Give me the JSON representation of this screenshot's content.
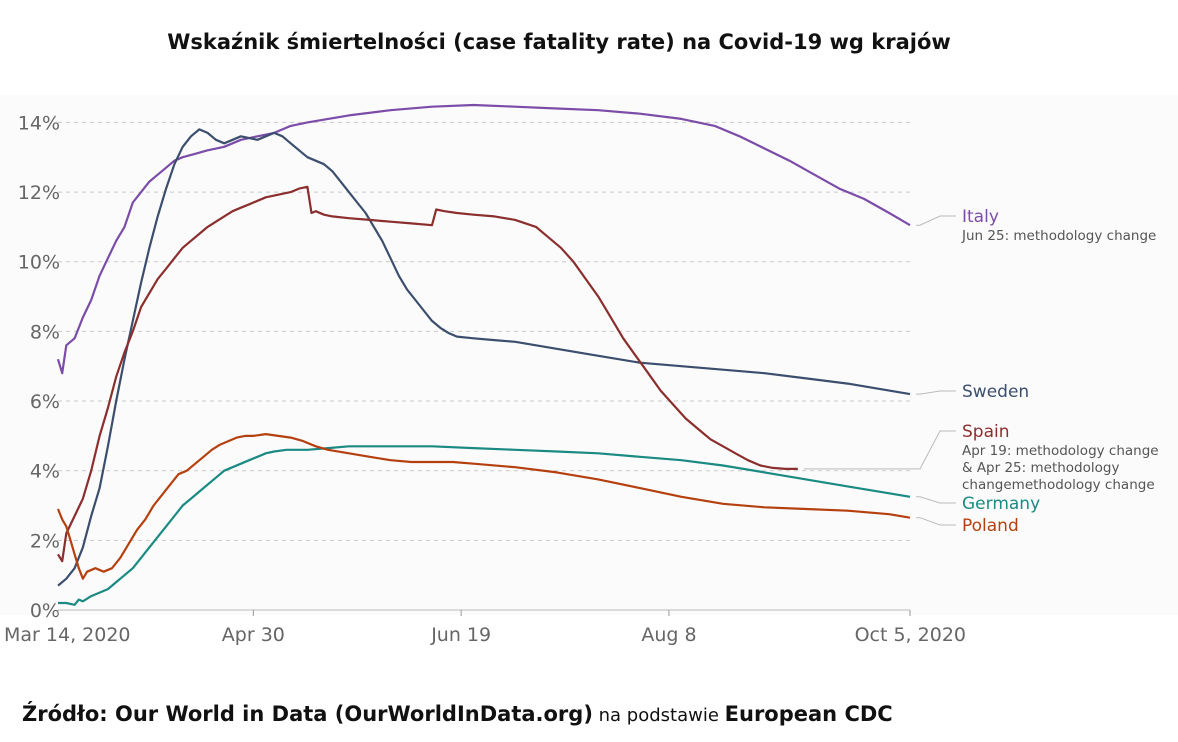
{
  "title": "Wskaźnik śmiertelności (case fatality rate) na Covid-19 wg krajów",
  "source": {
    "prefix": "Źródło: Our World in Data (OurWorldInData.org)",
    "middle": " na podstawie ",
    "suffix": "European CDC"
  },
  "chart_data": {
    "type": "line",
    "title": "Wskaźnik śmiertelności (case fatality rate) na Covid-19 wg krajów",
    "xlabel": "",
    "ylabel": "",
    "x_range_days": [
      0,
      205
    ],
    "x_ticks": [
      {
        "day": 0,
        "label": "Mar 14, 2020"
      },
      {
        "day": 47,
        "label": "Apr 30"
      },
      {
        "day": 97,
        "label": "Jun 19"
      },
      {
        "day": 147,
        "label": "Aug 8"
      },
      {
        "day": 205,
        "label": "Oct 5, 2020"
      }
    ],
    "ylim": [
      0,
      14.5
    ],
    "y_ticks": [
      0,
      2,
      4,
      6,
      8,
      10,
      12,
      14
    ],
    "y_tick_format": "%",
    "grid": "horizontal-dashed",
    "series": [
      {
        "name": "Italy",
        "color": "#7b4ca8",
        "note": "Jun 25: methodology change",
        "points": [
          [
            0,
            7.2
          ],
          [
            1,
            6.8
          ],
          [
            2,
            7.6
          ],
          [
            4,
            7.8
          ],
          [
            6,
            8.4
          ],
          [
            8,
            8.9
          ],
          [
            10,
            9.6
          ],
          [
            12,
            10.1
          ],
          [
            14,
            10.6
          ],
          [
            16,
            11.0
          ],
          [
            18,
            11.7
          ],
          [
            20,
            12.0
          ],
          [
            22,
            12.3
          ],
          [
            24,
            12.5
          ],
          [
            26,
            12.7
          ],
          [
            28,
            12.9
          ],
          [
            30,
            13.0
          ],
          [
            33,
            13.1
          ],
          [
            36,
            13.2
          ],
          [
            40,
            13.3
          ],
          [
            44,
            13.5
          ],
          [
            48,
            13.6
          ],
          [
            52,
            13.7
          ],
          [
            56,
            13.9
          ],
          [
            60,
            14.0
          ],
          [
            65,
            14.1
          ],
          [
            70,
            14.2
          ],
          [
            80,
            14.35
          ],
          [
            90,
            14.45
          ],
          [
            100,
            14.5
          ],
          [
            110,
            14.45
          ],
          [
            120,
            14.4
          ],
          [
            130,
            14.35
          ],
          [
            140,
            14.25
          ],
          [
            150,
            14.1
          ],
          [
            158,
            13.9
          ],
          [
            164,
            13.6
          ],
          [
            170,
            13.25
          ],
          [
            176,
            12.9
          ],
          [
            182,
            12.5
          ],
          [
            188,
            12.1
          ],
          [
            194,
            11.8
          ],
          [
            200,
            11.4
          ],
          [
            205,
            11.05
          ]
        ]
      },
      {
        "name": "Sweden",
        "color": "#3c4e6e",
        "note": "",
        "points": [
          [
            0,
            0.7
          ],
          [
            2,
            0.9
          ],
          [
            4,
            1.2
          ],
          [
            6,
            1.8
          ],
          [
            8,
            2.7
          ],
          [
            10,
            3.5
          ],
          [
            12,
            4.7
          ],
          [
            14,
            6.0
          ],
          [
            16,
            7.2
          ],
          [
            18,
            8.3
          ],
          [
            20,
            9.4
          ],
          [
            22,
            10.4
          ],
          [
            24,
            11.3
          ],
          [
            26,
            12.1
          ],
          [
            28,
            12.8
          ],
          [
            30,
            13.3
          ],
          [
            32,
            13.6
          ],
          [
            34,
            13.8
          ],
          [
            36,
            13.7
          ],
          [
            38,
            13.5
          ],
          [
            40,
            13.4
          ],
          [
            42,
            13.5
          ],
          [
            44,
            13.6
          ],
          [
            46,
            13.55
          ],
          [
            48,
            13.5
          ],
          [
            50,
            13.6
          ],
          [
            52,
            13.7
          ],
          [
            54,
            13.6
          ],
          [
            56,
            13.4
          ],
          [
            58,
            13.2
          ],
          [
            60,
            13.0
          ],
          [
            62,
            12.9
          ],
          [
            64,
            12.8
          ],
          [
            66,
            12.6
          ],
          [
            68,
            12.3
          ],
          [
            70,
            12.0
          ],
          [
            72,
            11.7
          ],
          [
            74,
            11.4
          ],
          [
            76,
            11.0
          ],
          [
            78,
            10.6
          ],
          [
            80,
            10.1
          ],
          [
            82,
            9.6
          ],
          [
            84,
            9.2
          ],
          [
            86,
            8.9
          ],
          [
            88,
            8.6
          ],
          [
            90,
            8.3
          ],
          [
            92,
            8.1
          ],
          [
            94,
            7.95
          ],
          [
            96,
            7.85
          ],
          [
            100,
            7.8
          ],
          [
            105,
            7.75
          ],
          [
            110,
            7.7
          ],
          [
            115,
            7.6
          ],
          [
            120,
            7.5
          ],
          [
            130,
            7.3
          ],
          [
            140,
            7.1
          ],
          [
            150,
            7.0
          ],
          [
            160,
            6.9
          ],
          [
            170,
            6.8
          ],
          [
            180,
            6.65
          ],
          [
            190,
            6.5
          ],
          [
            200,
            6.3
          ],
          [
            205,
            6.2
          ]
        ]
      },
      {
        "name": "Spain",
        "color": "#8b2e2e",
        "note": "Apr 19: methodology change & Apr 25: methodology changemethodology change",
        "note_lines": [
          "Apr 19: methodology change",
          "& Apr 25: methodology",
          "changemethodology change"
        ],
        "points": [
          [
            0,
            1.6
          ],
          [
            1,
            1.4
          ],
          [
            2,
            2.2
          ],
          [
            4,
            2.7
          ],
          [
            6,
            3.2
          ],
          [
            8,
            4.0
          ],
          [
            10,
            5.0
          ],
          [
            12,
            5.8
          ],
          [
            14,
            6.7
          ],
          [
            16,
            7.4
          ],
          [
            18,
            8.0
          ],
          [
            20,
            8.7
          ],
          [
            22,
            9.1
          ],
          [
            24,
            9.5
          ],
          [
            26,
            9.8
          ],
          [
            28,
            10.1
          ],
          [
            30,
            10.4
          ],
          [
            32,
            10.6
          ],
          [
            34,
            10.8
          ],
          [
            36,
            11.0
          ],
          [
            38,
            11.15
          ],
          [
            40,
            11.3
          ],
          [
            42,
            11.45
          ],
          [
            44,
            11.55
          ],
          [
            46,
            11.65
          ],
          [
            48,
            11.75
          ],
          [
            50,
            11.85
          ],
          [
            52,
            11.9
          ],
          [
            54,
            11.95
          ],
          [
            56,
            12.0
          ],
          [
            58,
            12.1
          ],
          [
            60,
            12.15
          ],
          [
            61,
            11.4
          ],
          [
            62,
            11.45
          ],
          [
            64,
            11.35
          ],
          [
            66,
            11.3
          ],
          [
            70,
            11.25
          ],
          [
            75,
            11.2
          ],
          [
            80,
            11.15
          ],
          [
            85,
            11.1
          ],
          [
            90,
            11.05
          ],
          [
            91,
            11.5
          ],
          [
            93,
            11.45
          ],
          [
            96,
            11.4
          ],
          [
            100,
            11.35
          ],
          [
            105,
            11.3
          ],
          [
            110,
            11.2
          ],
          [
            115,
            11.0
          ],
          [
            118,
            10.7
          ],
          [
            121,
            10.4
          ],
          [
            124,
            10.0
          ],
          [
            127,
            9.5
          ],
          [
            130,
            9.0
          ],
          [
            133,
            8.4
          ],
          [
            136,
            7.8
          ],
          [
            139,
            7.3
          ],
          [
            142,
            6.8
          ],
          [
            145,
            6.3
          ],
          [
            148,
            5.9
          ],
          [
            151,
            5.5
          ],
          [
            154,
            5.2
          ],
          [
            157,
            4.9
          ],
          [
            160,
            4.7
          ],
          [
            163,
            4.5
          ],
          [
            166,
            4.3
          ],
          [
            169,
            4.15
          ],
          [
            172,
            4.08
          ],
          [
            175,
            4.05
          ],
          [
            178,
            4.05
          ]
        ]
      },
      {
        "name": "Germany",
        "color": "#1a8a82",
        "note": "",
        "points": [
          [
            0,
            0.2
          ],
          [
            2,
            0.2
          ],
          [
            4,
            0.15
          ],
          [
            5,
            0.3
          ],
          [
            6,
            0.25
          ],
          [
            8,
            0.4
          ],
          [
            10,
            0.5
          ],
          [
            12,
            0.6
          ],
          [
            14,
            0.8
          ],
          [
            16,
            1.0
          ],
          [
            18,
            1.2
          ],
          [
            20,
            1.5
          ],
          [
            22,
            1.8
          ],
          [
            24,
            2.1
          ],
          [
            26,
            2.4
          ],
          [
            28,
            2.7
          ],
          [
            30,
            3.0
          ],
          [
            32,
            3.2
          ],
          [
            34,
            3.4
          ],
          [
            36,
            3.6
          ],
          [
            38,
            3.8
          ],
          [
            40,
            4.0
          ],
          [
            42,
            4.1
          ],
          [
            44,
            4.2
          ],
          [
            46,
            4.3
          ],
          [
            48,
            4.4
          ],
          [
            50,
            4.5
          ],
          [
            52,
            4.55
          ],
          [
            55,
            4.6
          ],
          [
            60,
            4.6
          ],
          [
            65,
            4.65
          ],
          [
            70,
            4.7
          ],
          [
            80,
            4.7
          ],
          [
            90,
            4.7
          ],
          [
            100,
            4.65
          ],
          [
            110,
            4.6
          ],
          [
            120,
            4.55
          ],
          [
            130,
            4.5
          ],
          [
            140,
            4.4
          ],
          [
            150,
            4.3
          ],
          [
            160,
            4.15
          ],
          [
            170,
            3.95
          ],
          [
            180,
            3.75
          ],
          [
            190,
            3.55
          ],
          [
            200,
            3.35
          ],
          [
            205,
            3.25
          ]
        ]
      },
      {
        "name": "Poland",
        "color": "#b5400f",
        "note": "",
        "points": [
          [
            0,
            2.9
          ],
          [
            1,
            2.6
          ],
          [
            2,
            2.4
          ],
          [
            3,
            2.0
          ],
          [
            4,
            1.6
          ],
          [
            5,
            1.2
          ],
          [
            6,
            0.9
          ],
          [
            7,
            1.1
          ],
          [
            9,
            1.2
          ],
          [
            11,
            1.1
          ],
          [
            13,
            1.2
          ],
          [
            15,
            1.5
          ],
          [
            17,
            1.9
          ],
          [
            19,
            2.3
          ],
          [
            21,
            2.6
          ],
          [
            23,
            3.0
          ],
          [
            25,
            3.3
          ],
          [
            27,
            3.6
          ],
          [
            29,
            3.9
          ],
          [
            31,
            4.0
          ],
          [
            33,
            4.2
          ],
          [
            35,
            4.4
          ],
          [
            37,
            4.6
          ],
          [
            39,
            4.75
          ],
          [
            41,
            4.85
          ],
          [
            43,
            4.95
          ],
          [
            45,
            5.0
          ],
          [
            47,
            5.0
          ],
          [
            50,
            5.05
          ],
          [
            53,
            5.0
          ],
          [
            56,
            4.95
          ],
          [
            59,
            4.85
          ],
          [
            62,
            4.7
          ],
          [
            65,
            4.6
          ],
          [
            70,
            4.5
          ],
          [
            75,
            4.4
          ],
          [
            80,
            4.3
          ],
          [
            85,
            4.25
          ],
          [
            90,
            4.25
          ],
          [
            95,
            4.25
          ],
          [
            100,
            4.2
          ],
          [
            110,
            4.1
          ],
          [
            120,
            3.95
          ],
          [
            130,
            3.75
          ],
          [
            140,
            3.5
          ],
          [
            150,
            3.25
          ],
          [
            160,
            3.05
          ],
          [
            170,
            2.95
          ],
          [
            180,
            2.9
          ],
          [
            190,
            2.85
          ],
          [
            200,
            2.75
          ],
          [
            205,
            2.65
          ]
        ]
      }
    ]
  }
}
